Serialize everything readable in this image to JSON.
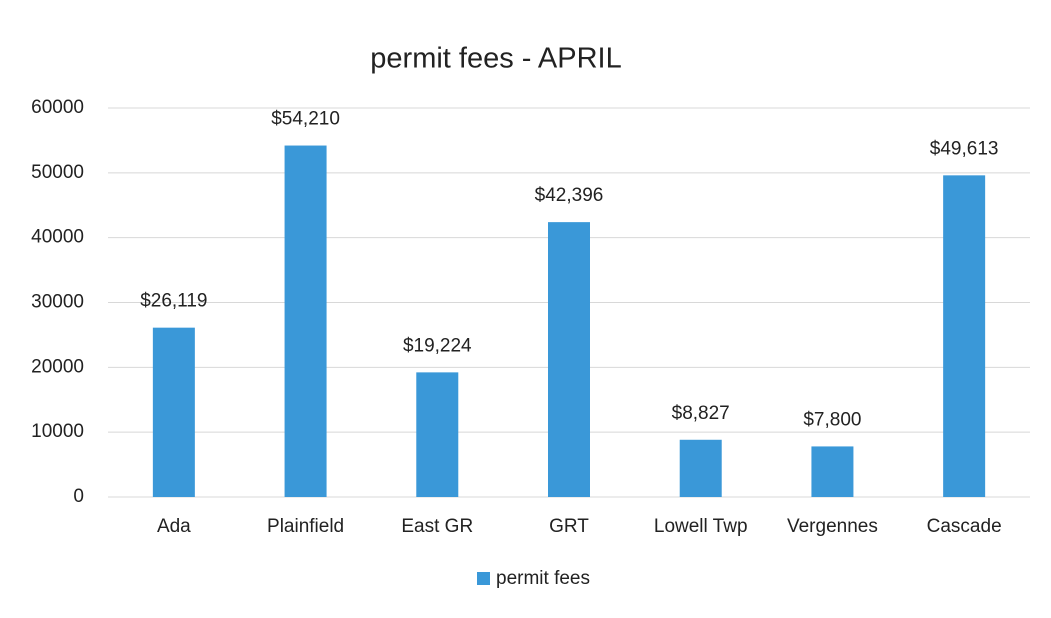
{
  "chart_data": {
    "type": "bar",
    "title": "permit fees - APRIL",
    "categories": [
      "Ada",
      "Plainfield",
      "East GR",
      "GRT",
      "Lowell Twp",
      "Vergennes",
      "Cascade"
    ],
    "series": [
      {
        "name": "permit fees",
        "color": "#3a98d8",
        "values": [
          26119,
          54210,
          19224,
          42396,
          8827,
          7800,
          49613
        ],
        "value_labels": [
          "$26,119",
          "$54,210",
          "$19,224",
          "$42,396",
          "$8,827",
          "$7,800",
          "$49,613"
        ]
      }
    ],
    "ylim": [
      0,
      60000
    ],
    "yticks": [
      0,
      10000,
      20000,
      30000,
      40000,
      50000,
      60000
    ],
    "grid": true,
    "legend": "bottom"
  }
}
